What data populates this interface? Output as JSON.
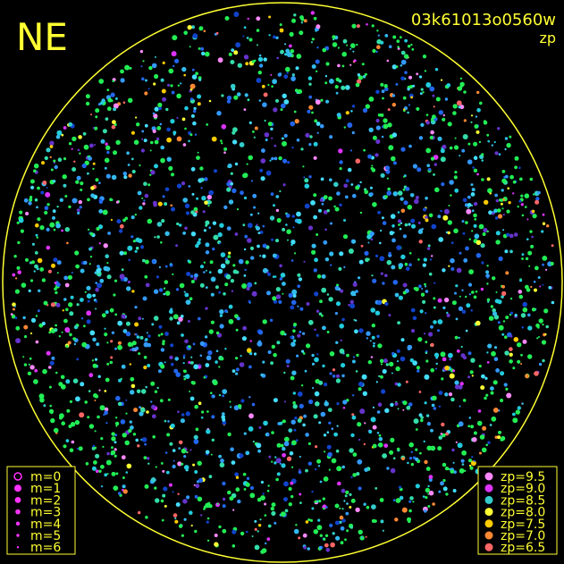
{
  "header": {
    "direction": "NE",
    "frame_id": "03k61013o0560w",
    "mode": "zp"
  },
  "magnitude_legend": {
    "items": [
      {
        "label": "m=0",
        "radius": 4,
        "hollow": true
      },
      {
        "label": "m=1",
        "radius": 4
      },
      {
        "label": "m=2",
        "radius": 3.4
      },
      {
        "label": "m=3",
        "radius": 2.8
      },
      {
        "label": "m=4",
        "radius": 2.2
      },
      {
        "label": "m=5",
        "radius": 1.7
      },
      {
        "label": "m=6",
        "radius": 1.2
      }
    ],
    "color": "#ff33ff"
  },
  "zp_legend": {
    "items": [
      {
        "label": "zp=9.5",
        "color": "#ff88ff"
      },
      {
        "label": "zp=9.0",
        "color": "#dd33ff"
      },
      {
        "label": "zp=8.5",
        "color": "#33cccc"
      },
      {
        "label": "zp=8.0",
        "color": "#ffff33"
      },
      {
        "label": "zp=7.5",
        "color": "#ffcc00"
      },
      {
        "label": "zp=7.0",
        "color": "#ff8833"
      },
      {
        "label": "zp=6.5",
        "color": "#ff6666"
      }
    ]
  }
}
